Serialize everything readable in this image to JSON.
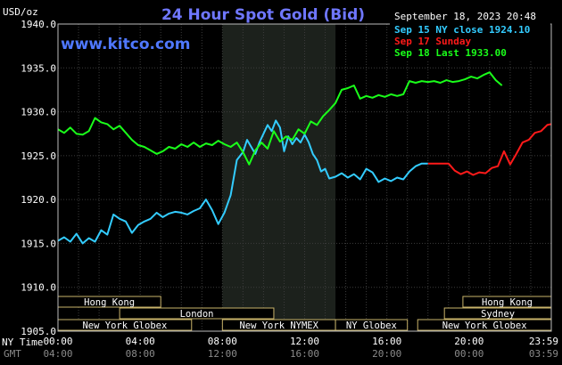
{
  "chart_data": {
    "type": "line",
    "title": "24 Hour Spot Gold (Bid)",
    "site": "www.kitco.com",
    "timestamp": "September 18, 2023 20:48",
    "ylabel": "USD/oz",
    "ylim": [
      1905,
      1940
    ],
    "yticks": [
      "1940.0",
      "1935.0",
      "1930.0",
      "1925.0",
      "1920.0",
      "1915.0",
      "1910.0",
      "1905.0"
    ],
    "xlim": [
      0,
      24
    ],
    "xticks_ny": [
      "00:00",
      "04:00",
      "08:00",
      "12:00",
      "16:00",
      "20:00",
      "23:59"
    ],
    "xticks_gmt": [
      "04:00",
      "08:00",
      "12:00",
      "16:00",
      "20:00",
      "00:00",
      "03:59"
    ],
    "x_axis_label_ny": "NY Time",
    "x_axis_label_gmt": "GMT",
    "highlight_range": [
      8.0,
      13.5
    ],
    "grid": true,
    "legend_position": "top-right",
    "series": [
      {
        "name": "Sep 15 NY close 1924.10",
        "color": "#33ccff",
        "x": [
          0,
          0.3,
          0.6,
          0.9,
          1.2,
          1.5,
          1.8,
          2.1,
          2.4,
          2.7,
          3.0,
          3.3,
          3.6,
          3.9,
          4.2,
          4.5,
          4.8,
          5.1,
          5.4,
          5.7,
          6.0,
          6.3,
          6.6,
          6.9,
          7.2,
          7.5,
          7.8,
          8.1,
          8.4,
          8.7,
          9.0,
          9.2,
          9.4,
          9.6,
          9.8,
          10.0,
          10.2,
          10.4,
          10.6,
          10.8,
          11.0,
          11.2,
          11.4,
          11.6,
          11.8,
          12.0,
          12.2,
          12.4,
          12.6,
          12.8,
          13.0,
          13.2,
          13.5,
          13.8,
          14.1,
          14.4,
          14.7,
          15.0,
          15.3,
          15.6,
          15.9,
          16.2,
          16.5,
          16.8,
          17.1,
          17.4,
          17.7,
          18.0
        ],
        "y": [
          1915.3,
          1915.7,
          1915.2,
          1916.1,
          1915.0,
          1915.6,
          1915.2,
          1916.5,
          1916.0,
          1918.3,
          1917.8,
          1917.5,
          1916.2,
          1917.1,
          1917.5,
          1917.8,
          1918.5,
          1918.0,
          1918.4,
          1918.6,
          1918.5,
          1918.3,
          1918.7,
          1919.0,
          1920.0,
          1918.8,
          1917.2,
          1918.5,
          1920.5,
          1924.5,
          1925.4,
          1926.8,
          1926.0,
          1925.2,
          1926.5,
          1927.5,
          1928.5,
          1927.8,
          1929.0,
          1928.2,
          1925.5,
          1927.2,
          1926.3,
          1927.0,
          1926.5,
          1927.4,
          1926.5,
          1925.2,
          1924.5,
          1923.2,
          1923.5,
          1922.4,
          1922.6,
          1923.0,
          1922.5,
          1922.9,
          1922.3,
          1923.5,
          1923.1,
          1922.0,
          1922.4,
          1922.1,
          1922.5,
          1922.3,
          1923.2,
          1923.8,
          1924.1,
          1924.1
        ]
      },
      {
        "name": "Sep 17 Sunday",
        "color": "#ff1a1a",
        "x": [
          18.0,
          18.5,
          19.0,
          19.3,
          19.6,
          19.9,
          20.2,
          20.5,
          20.8,
          21.1,
          21.4,
          21.7,
          22.0,
          22.3,
          22.6,
          22.9,
          23.2,
          23.5,
          23.8,
          24.0
        ],
        "y": [
          1924.1,
          1924.1,
          1924.1,
          1923.3,
          1922.9,
          1923.2,
          1922.8,
          1923.1,
          1923.0,
          1923.6,
          1923.8,
          1925.5,
          1924.0,
          1925.2,
          1926.5,
          1926.8,
          1927.6,
          1927.8,
          1928.5,
          1928.6
        ]
      },
      {
        "name": "Sep 18 Last 1933.00",
        "color": "#1aff1a",
        "x": [
          0,
          0.3,
          0.6,
          0.9,
          1.2,
          1.5,
          1.8,
          2.1,
          2.4,
          2.7,
          3.0,
          3.3,
          3.6,
          3.9,
          4.2,
          4.5,
          4.8,
          5.1,
          5.4,
          5.7,
          6.0,
          6.3,
          6.6,
          6.9,
          7.2,
          7.5,
          7.8,
          8.1,
          8.4,
          8.7,
          9.0,
          9.3,
          9.6,
          9.9,
          10.2,
          10.5,
          10.8,
          11.1,
          11.4,
          11.7,
          12.0,
          12.3,
          12.6,
          12.9,
          13.2,
          13.5,
          13.8,
          14.1,
          14.4,
          14.7,
          15.0,
          15.3,
          15.6,
          15.9,
          16.2,
          16.5,
          16.8,
          17.1,
          17.4,
          17.7,
          18.0,
          18.3,
          18.6,
          18.9,
          19.2,
          19.5,
          19.8,
          20.1,
          20.4,
          20.7,
          21.0,
          21.3,
          21.6
        ],
        "y": [
          1928.0,
          1927.6,
          1928.2,
          1927.5,
          1927.4,
          1927.8,
          1929.3,
          1928.8,
          1928.6,
          1928.0,
          1928.4,
          1927.6,
          1926.8,
          1926.2,
          1926.0,
          1925.6,
          1925.2,
          1925.5,
          1926.0,
          1925.8,
          1926.3,
          1926.0,
          1926.5,
          1926.0,
          1926.4,
          1926.2,
          1926.7,
          1926.3,
          1926.0,
          1926.5,
          1925.4,
          1924.0,
          1925.6,
          1926.5,
          1925.8,
          1927.8,
          1926.6,
          1927.2,
          1926.8,
          1928.0,
          1927.5,
          1928.9,
          1928.5,
          1929.5,
          1930.2,
          1931.0,
          1932.5,
          1932.7,
          1933.0,
          1931.5,
          1931.8,
          1931.6,
          1931.9,
          1931.7,
          1932.0,
          1931.8,
          1932.0,
          1933.5,
          1933.3,
          1933.5,
          1933.4,
          1933.5,
          1933.3,
          1933.6,
          1933.4,
          1933.5,
          1933.7,
          1934.0,
          1933.8,
          1934.2,
          1934.5,
          1933.6,
          1933.0
        ]
      }
    ],
    "sessions": [
      {
        "label": "Hong Kong",
        "start": 0,
        "end": 5.0,
        "row": 0
      },
      {
        "label": "London",
        "start": 3.0,
        "end": 10.5,
        "row": 1
      },
      {
        "label": "New York Globex",
        "start": 0,
        "end": 6.5,
        "row": 2
      },
      {
        "label": "New York NYMEX",
        "start": 8.0,
        "end": 13.5,
        "row": 2
      },
      {
        "label": "NY Globex",
        "start": 13.5,
        "end": 17.0,
        "row": 2
      },
      {
        "label": "Hong Kong",
        "start": 19.7,
        "end": 24.0,
        "row": 0
      },
      {
        "label": "Sydney",
        "start": 18.8,
        "end": 24.0,
        "row": 1
      },
      {
        "label": "New York Globex",
        "start": 17.5,
        "end": 24.0,
        "row": 2
      }
    ]
  }
}
